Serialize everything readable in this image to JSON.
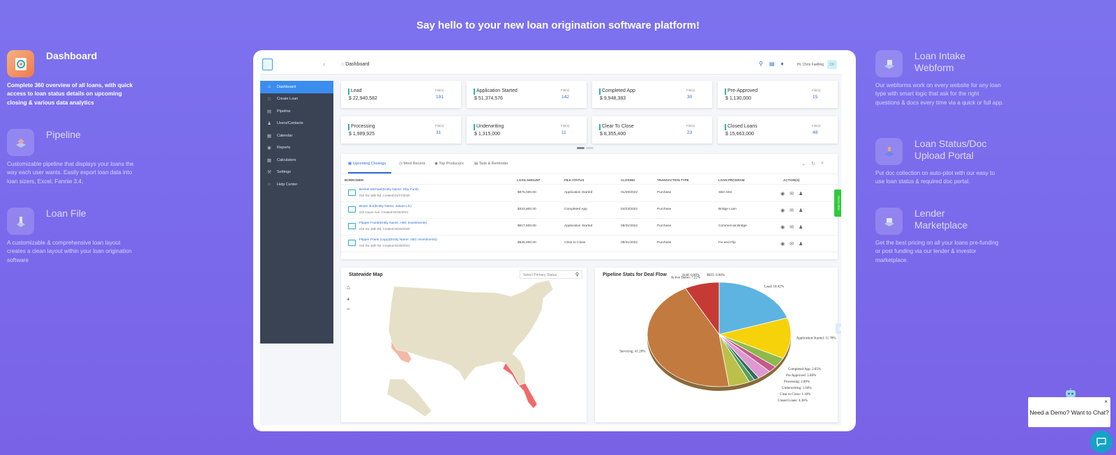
{
  "headline": "Say hello to your new loan origination software platform!",
  "features_left": [
    {
      "title": "Dashboard",
      "desc": "Complete 360 overview of all loans, with quick access to loan status details on upcoming closing & various data analytics",
      "icon": "dashboard-icon"
    },
    {
      "title": "Pipeline",
      "desc": "Customizable pipeline that displays your loans the way each user wants. Easily export loan data into loan sizers, Excel, Fannie 3.4,",
      "icon": "pipeline-icon"
    },
    {
      "title": "Loan File",
      "desc": "A customizable & comprehensive loan layout creates a clean layout within your loan origination software",
      "icon": "loan-file-icon"
    }
  ],
  "features_right": [
    {
      "title": "Loan Intake Webform",
      "desc": "Our webforms work on every website for any loan type with smart logic that ask for the right questions & docs every time via a quick or full app.",
      "icon": "webform-icon"
    },
    {
      "title": "Loan Status/Doc Upload Portal",
      "desc": "Put doc collection on auto-pilot with our easy to use loan status & required doc portal.",
      "icon": "portal-icon"
    },
    {
      "title": "Lender Marketplace",
      "desc": "Get the best pricing on all your loans pre-funding or post funding via our lender & investor marketplace.",
      "icon": "marketplace-icon"
    }
  ],
  "app": {
    "breadcrumb": "Dashboard",
    "greeting": "Hi, Chris Fuelling",
    "avatar": "CF",
    "sidebar": [
      {
        "label": "Dashboard",
        "icon": "home-icon",
        "active": true
      },
      {
        "label": "Create Loan",
        "icon": "create-icon"
      },
      {
        "label": "Pipeline",
        "icon": "pipeline-icon"
      },
      {
        "label": "Users/Contacts",
        "icon": "users-icon"
      },
      {
        "label": "Calendar",
        "icon": "calendar-icon"
      },
      {
        "label": "Reports",
        "icon": "reports-icon"
      },
      {
        "label": "Calculators",
        "icon": "calculator-icon"
      },
      {
        "label": "Settings",
        "icon": "settings-icon"
      },
      {
        "label": "Help Center",
        "icon": "help-icon"
      }
    ],
    "cards": [
      {
        "label": "Lead",
        "amount": "$ 22,940,582",
        "files_label": "File(s)",
        "files": "191"
      },
      {
        "label": "Application Started",
        "amount": "$ 51,374,576",
        "files_label": "File(s)",
        "files": "142"
      },
      {
        "label": "Completed App",
        "amount": "$ 9,948,383",
        "files_label": "File(s)",
        "files": "30"
      },
      {
        "label": "Pre-Approved",
        "amount": "$ 1,130,000",
        "files_label": "File(s)",
        "files": "15"
      },
      {
        "label": "Processing",
        "amount": "$ 1,989,925",
        "files_label": "File(s)",
        "files": "31"
      },
      {
        "label": "Underwriting",
        "amount": "$ 1,315,000",
        "files_label": "File(s)",
        "files": "11"
      },
      {
        "label": "Clear To Close",
        "amount": "$ 8,355,400",
        "files_label": "File(s)",
        "files": "23"
      },
      {
        "label": "Closed Loans",
        "amount": "$ 15,663,000",
        "files_label": "File(s)",
        "files": "48"
      }
    ],
    "tabs": [
      "Upcoming Closings",
      "Most Recent",
      "Top Producers",
      "Task & Reminder"
    ],
    "columns": [
      "BORROWER",
      "LOAN AMOUNT",
      "FILE STATUS",
      "CLOSING",
      "TRANSACTION TYPE",
      "LOAN PROGRAM",
      "ACTION(S)"
    ],
    "rows": [
      {
        "name": "Beckel Michael(Entity Name: Sba Fund)",
        "addr": "215 Sw 18th Rd, Created:01/27/2020",
        "amount": "$875,000.00",
        "status": "Application Started",
        "closing": "01/29/2022",
        "type": "Purchase",
        "program": "SBA-504"
      },
      {
        "name": "Beam Jim(Entity Name: Jasam Llc)",
        "addr": "222 Liquor Ave, Created:04/16/2021",
        "amount": "$323,800.00",
        "status": "Completed App",
        "closing": "04/23/2022",
        "type": "Purchase",
        "program": "Bridge Loan"
      },
      {
        "name": "Flipper Frank(Entity Name: ABC Investments)",
        "addr": "215 Sw 18th Rd, Created:05/25/2020",
        "amount": "$517,500.00",
        "status": "Application Started",
        "closing": "08/31/2022",
        "type": "Purchase",
        "program": "Commercial Bridge"
      },
      {
        "name": "Flipper Frank (copy)(Entity Name: ABC Investments)",
        "addr": "215 Sw 18th Rd, Created:02/28/2021",
        "amount": "$625,000.00",
        "status": "Clear to Close",
        "closing": "08/31/2022",
        "type": "Purchase",
        "program": "Fix and Flip"
      }
    ],
    "help_tab": "Help Center",
    "map_title": "Statewide Map",
    "map_select": "Select Primary Status",
    "pie_title": "Pipeline Stats for Deal Flow",
    "chat_text": "Need a Demo? Want to Chat?"
  },
  "chart_data": {
    "type": "pie",
    "title": "Pipeline Stats for Deal Flow",
    "slices": [
      {
        "label": "Lead: 18.42%",
        "value": 18.42,
        "color": "#5db4e0"
      },
      {
        "label": "Application Started: 11.78%",
        "value": 11.78,
        "color": "#f6d20b"
      },
      {
        "label": "Completed App: 2.85%",
        "value": 2.85,
        "color": "#8dba4b"
      },
      {
        "label": "Pre Approved: 1.80%",
        "value": 1.8,
        "color": "#c45a8c"
      },
      {
        "label": "Processing: 2.89%",
        "value": 2.89,
        "color": "#de9ad0"
      },
      {
        "label": "Underwriting: 1.04%",
        "value": 1.04,
        "color": "#2f6b62"
      },
      {
        "label": "Clear to Close: 1.18%",
        "value": 1.18,
        "color": "#58a058"
      },
      {
        "label": "Closed Loans: 4.38%",
        "value": 4.38,
        "color": "#bcc04a"
      },
      {
        "label": "Servicing: 41.20%",
        "value": 41.2,
        "color": "#c27a3f"
      },
      {
        "label": "Active Demo: 7.22%",
        "value": 7.22,
        "color": "#c53a35"
      },
      {
        "label": "Sold: 0.00%",
        "value": 0.0001,
        "color": "#444444"
      },
      {
        "label": "REO: 0.00%",
        "value": 0.0001,
        "color": "#777777"
      }
    ]
  }
}
